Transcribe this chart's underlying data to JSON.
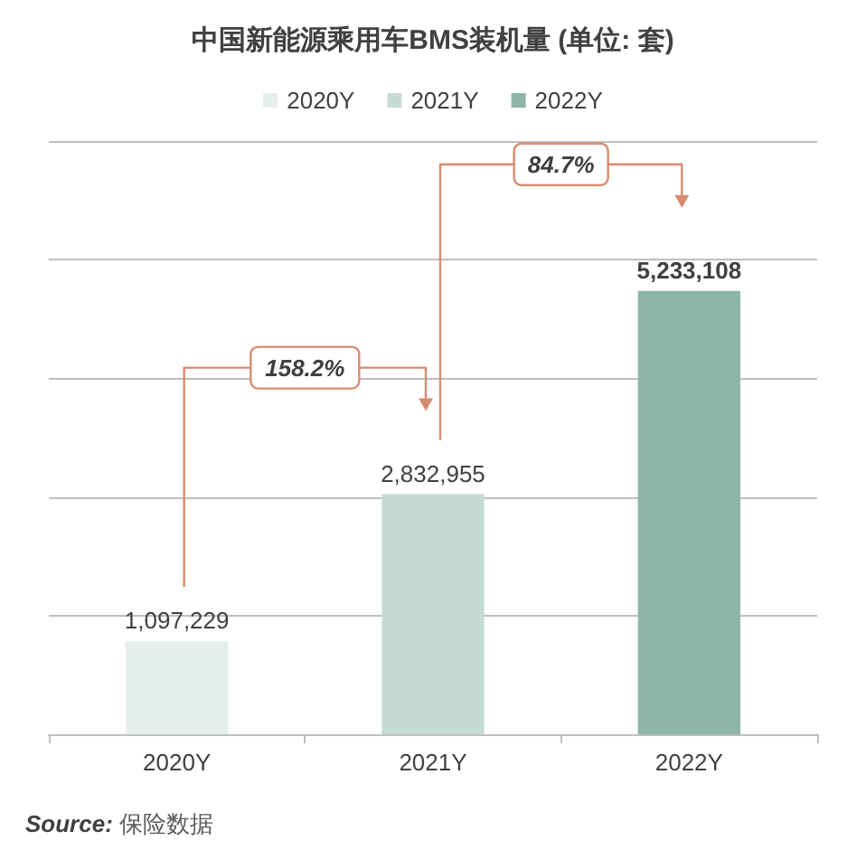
{
  "chart_data": {
    "type": "bar",
    "title": "中国新能源乘用车BMS装机量 (单位: 套)",
    "categories": [
      "2020Y",
      "2021Y",
      "2022Y"
    ],
    "series": [
      {
        "name": "2020Y",
        "color": "#e5eeeb",
        "values": [
          1097229,
          null,
          null
        ],
        "value_labels": [
          "1,097,229",
          null,
          null
        ]
      },
      {
        "name": "2021Y",
        "color": "#c7dbd5",
        "values": [
          null,
          2832955,
          null
        ],
        "value_labels": [
          null,
          "2,832,955",
          null
        ]
      },
      {
        "name": "2022Y",
        "color": "#8db6a6",
        "values": [
          null,
          null,
          5233108
        ],
        "value_labels": [
          null,
          null,
          "5,233,108"
        ]
      }
    ],
    "tick_labels": "x",
    "grid": "y",
    "legend": "top",
    "annotations": [
      "158.2%",
      "84.7%",
      "Source: 保险数据"
    ]
  }
}
